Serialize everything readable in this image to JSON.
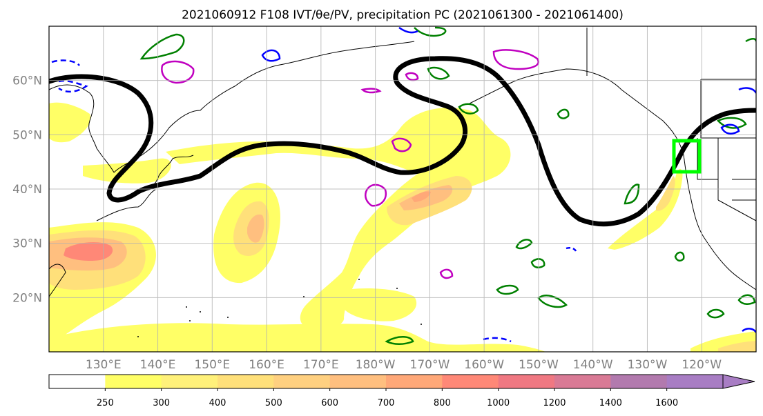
{
  "title": "2021060912 F108 IVT/θe/PV, precipitation PC (2021061300 - 2021061400)",
  "map": {
    "lon_range": [
      120,
      250
    ],
    "lat_range": [
      10,
      70
    ],
    "lat_labels": [
      "60°N",
      "50°N",
      "40°N",
      "30°N",
      "20°N"
    ],
    "lon_labels": [
      "130°E",
      "140°E",
      "150°E",
      "160°E",
      "170°E",
      "180°W",
      "170°W",
      "160°W",
      "150°W",
      "140°W",
      "130°W",
      "120°W"
    ],
    "gridlines": true,
    "highlight_box": {
      "lon": [
        234,
        239
      ],
      "lat": [
        42,
        48
      ],
      "color": "#00ff00"
    }
  },
  "colorbar": {
    "levels": [
      "250",
      "300",
      "400",
      "500",
      "600",
      "700",
      "800",
      "1000",
      "1200",
      "1400",
      "1600"
    ],
    "colors": [
      "#ffff66",
      "#fff17a",
      "#ffe07a",
      "#ffd080",
      "#ffbf7f",
      "#ffa878",
      "#ff8877",
      "#f07882",
      "#d97a95",
      "#b27aae",
      "#a87dc4"
    ],
    "extend": "max"
  },
  "colors": {
    "pv_contour": "#0000ff",
    "theta_contour": "#008000",
    "precip_contour": "#c000c0",
    "jet_contour": "#000000"
  }
}
